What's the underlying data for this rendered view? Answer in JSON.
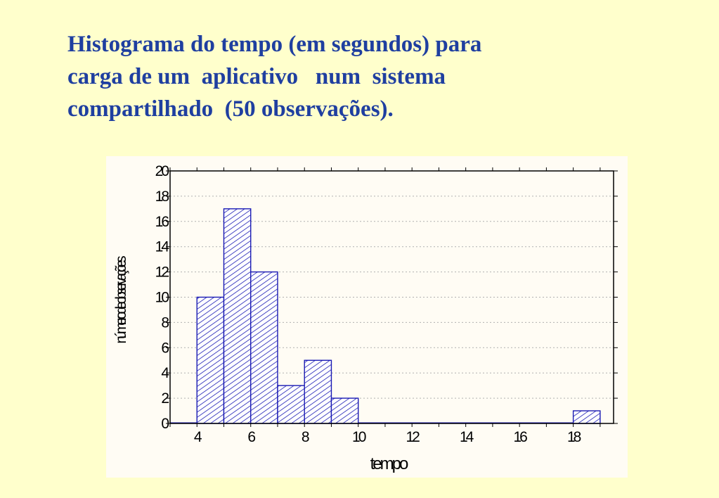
{
  "title_lines": [
    "Histograma do tempo (em segundos) para",
    "carga de um  aplicativo   num  sistema",
    "compartilhado  (50 observações)."
  ],
  "chart_data": {
    "type": "bar",
    "bin_width": 1,
    "bins": [
      {
        "x_start": 3,
        "x_end": 4,
        "value": 0
      },
      {
        "x_start": 4,
        "x_end": 5,
        "value": 10
      },
      {
        "x_start": 5,
        "x_end": 6,
        "value": 17
      },
      {
        "x_start": 6,
        "x_end": 7,
        "value": 12
      },
      {
        "x_start": 7,
        "x_end": 8,
        "value": 3
      },
      {
        "x_start": 8,
        "x_end": 9,
        "value": 5
      },
      {
        "x_start": 9,
        "x_end": 10,
        "value": 2
      },
      {
        "x_start": 10,
        "x_end": 11,
        "value": 0
      },
      {
        "x_start": 11,
        "x_end": 12,
        "value": 0
      },
      {
        "x_start": 12,
        "x_end": 13,
        "value": 0
      },
      {
        "x_start": 13,
        "x_end": 14,
        "value": 0
      },
      {
        "x_start": 14,
        "x_end": 15,
        "value": 0
      },
      {
        "x_start": 15,
        "x_end": 16,
        "value": 0
      },
      {
        "x_start": 16,
        "x_end": 17,
        "value": 0
      },
      {
        "x_start": 17,
        "x_end": 18,
        "value": 0
      },
      {
        "x_start": 18,
        "x_end": 19,
        "value": 1
      }
    ],
    "xlim": [
      3,
      19.5
    ],
    "ylim": [
      0,
      20
    ],
    "xticks": [
      4,
      6,
      8,
      10,
      12,
      14,
      16,
      18
    ],
    "yticks": [
      0,
      2,
      4,
      6,
      8,
      10,
      12,
      14,
      16,
      18,
      20
    ],
    "xlabel": "tempo",
    "ylabel": "número de observações",
    "grid": true,
    "legend": "none",
    "colors": {
      "bar_stroke": "#1a1ab4",
      "hatch": "#1a1ab4",
      "bar_fill": "#ffffff",
      "grid": "#b0b0b0"
    }
  }
}
